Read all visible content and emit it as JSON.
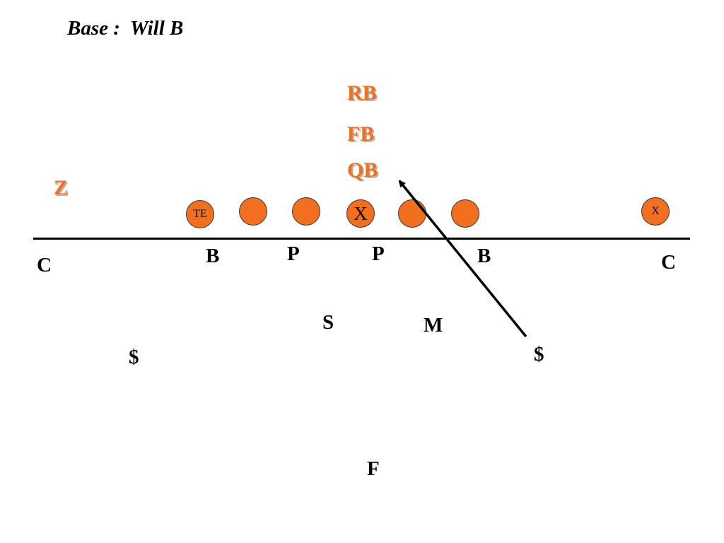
{
  "title": "Base :  Will B",
  "colors": {
    "offense": "#f26f1f",
    "defense": "#000000",
    "line": "#000000"
  },
  "offense": {
    "rb": "RB",
    "fb": "FB",
    "qb": "QB",
    "z": "Z",
    "te": "TE",
    "center": "X",
    "x": "X"
  },
  "defense": {
    "c_left": "C",
    "b_left": "B",
    "p_left": "P",
    "p_right": "P",
    "b_right": "B",
    "c_right": "C",
    "s": "S",
    "m": "M",
    "dollar_left": "$",
    "dollar_right": "$",
    "f": "F"
  }
}
